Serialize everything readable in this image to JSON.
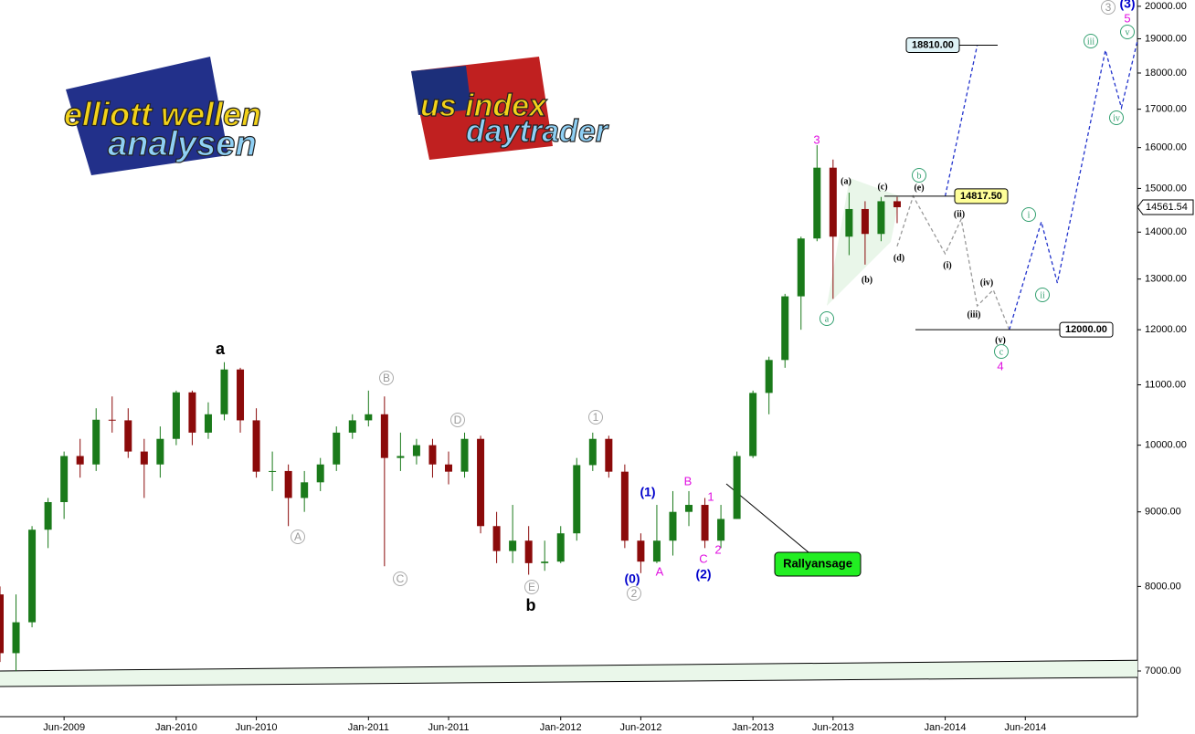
{
  "chart_data": {
    "type": "candlestick",
    "logos": {
      "left_top": "elliott wellen",
      "left_bottom": "analysen",
      "right_top": "us index",
      "right_bottom": "daytrader"
    },
    "log_scale": true,
    "xlim": [
      "2009-02",
      "2015-01"
    ],
    "ylim": [
      6513,
      20200
    ],
    "xticks": [
      {
        "value": "2009-06",
        "label": "Jun-2009"
      },
      {
        "value": "2010-01",
        "label": "Jan-2010"
      },
      {
        "value": "2010-06",
        "label": "Jun-2010"
      },
      {
        "value": "2011-01",
        "label": "Jan-2011"
      },
      {
        "value": "2011-06",
        "label": "Jun-2011"
      },
      {
        "value": "2012-01",
        "label": "Jan-2012"
      },
      {
        "value": "2012-06",
        "label": "Jun-2012"
      },
      {
        "value": "2013-01",
        "label": "Jan-2013"
      },
      {
        "value": "2013-06",
        "label": "Jun-2013"
      },
      {
        "value": "2014-01",
        "label": "Jan-2014"
      },
      {
        "value": "2014-06",
        "label": "Jun-2014"
      }
    ],
    "yticks": [
      {
        "value": 7000,
        "label": "7000.00"
      },
      {
        "value": 8000,
        "label": "8000.00"
      },
      {
        "value": 9000,
        "label": "9000.00"
      },
      {
        "value": 10000,
        "label": "10000.00"
      },
      {
        "value": 11000,
        "label": "11000.00"
      },
      {
        "value": 12000,
        "label": "12000.00"
      },
      {
        "value": 13000,
        "label": "13000.00"
      },
      {
        "value": 14000,
        "label": "14000.00"
      },
      {
        "value": 15000,
        "label": "15000.00"
      },
      {
        "value": 16000,
        "label": "16000.00"
      },
      {
        "value": 17000,
        "label": "17000.00"
      },
      {
        "value": 18000,
        "label": "18000.00"
      },
      {
        "value": 19000,
        "label": "19000.00"
      },
      {
        "value": 20000,
        "label": "20000.00"
      }
    ],
    "up_color": "#1a7a1a",
    "down_color": "#8b0a0a",
    "x": [
      "2009-02",
      "2009-03",
      "2009-04",
      "2009-05",
      "2009-06",
      "2009-07",
      "2009-08",
      "2009-09",
      "2009-10",
      "2009-11",
      "2009-12",
      "2010-01",
      "2010-02",
      "2010-03",
      "2010-04",
      "2010-05",
      "2010-06",
      "2010-07",
      "2010-08",
      "2010-09",
      "2010-10",
      "2010-11",
      "2010-12",
      "2011-01",
      "2011-02",
      "2011-03",
      "2011-04",
      "2011-05",
      "2011-06",
      "2011-07",
      "2011-08",
      "2011-09",
      "2011-10",
      "2011-11",
      "2011-12",
      "2012-01",
      "2012-02",
      "2012-03",
      "2012-04",
      "2012-05",
      "2012-06",
      "2012-07",
      "2012-08",
      "2012-09",
      "2012-10",
      "2012-11",
      "2012-12",
      "2013-01",
      "2013-02",
      "2013-03",
      "2013-04",
      "2013-05",
      "2013-06",
      "2013-07",
      "2013-08",
      "2013-09",
      "2013-10"
    ],
    "open": [
      7900,
      7200,
      7560,
      8750,
      9140,
      9830,
      9700,
      10410,
      10400,
      9900,
      9700,
      10100,
      10870,
      10200,
      10500,
      11270,
      10400,
      9590,
      9600,
      9200,
      9430,
      9700,
      10200,
      10400,
      10500,
      9800,
      9830,
      10000,
      9700,
      9590,
      10100,
      8800,
      8460,
      8600,
      8300,
      8320,
      8700,
      9690,
      10100,
      9590,
      8600,
      8320,
      8600,
      9000,
      9100,
      8600,
      8900,
      9830,
      10860,
      11440,
      12650,
      13860,
      15500,
      13900,
      14520,
      13960,
      14700
    ],
    "high": [
      8000,
      7900,
      8800,
      9200,
      9900,
      10100,
      10600,
      10800,
      10600,
      10100,
      10300,
      10900,
      10900,
      10700,
      11400,
      11300,
      10600,
      9900,
      9700,
      9600,
      9800,
      10300,
      10500,
      10900,
      10800,
      10200,
      10100,
      10100,
      9900,
      10200,
      10150,
      9000,
      9100,
      8800,
      8600,
      8800,
      9800,
      10200,
      10150,
      9700,
      8700,
      9100,
      9300,
      9300,
      9200,
      9100,
      9900,
      10900,
      11500,
      12700,
      13900,
      16060,
      15700,
      14900,
      14700,
      14800,
      14800
    ],
    "low": [
      7100,
      7000,
      7500,
      8500,
      8900,
      9500,
      9600,
      10200,
      9800,
      9200,
      9500,
      10000,
      10000,
      10100,
      10400,
      10200,
      9500,
      9300,
      8800,
      9000,
      9300,
      9600,
      10100,
      10300,
      8260,
      9600,
      9700,
      9500,
      9400,
      9500,
      8700,
      8300,
      8300,
      8150,
      8200,
      8300,
      8600,
      9600,
      9500,
      8500,
      8170,
      8300,
      8400,
      8800,
      8500,
      8500,
      8900,
      9800,
      10500,
      11300,
      12000,
      13800,
      12600,
      13500,
      13300,
      13800,
      14200
    ],
    "close": [
      7200,
      7560,
      8750,
      9140,
      9830,
      9700,
      10410,
      10400,
      9900,
      9700,
      10100,
      10870,
      10200,
      10500,
      11270,
      10400,
      9590,
      9600,
      9200,
      9430,
      9700,
      10200,
      10400,
      10500,
      9800,
      9830,
      10000,
      9700,
      9590,
      10100,
      8800,
      8460,
      8600,
      8300,
      8320,
      8700,
      9690,
      10100,
      9590,
      8600,
      8320,
      8600,
      9000,
      9100,
      8600,
      8900,
      9830,
      10860,
      11440,
      12650,
      13860,
      15500,
      13900,
      14520,
      13960,
      14700,
      14561.54
    ],
    "last_price": 14561.54,
    "channel": {
      "x": [
        "2009-02",
        "2015-01"
      ],
      "upper": [
        7000,
        7120
      ],
      "lower": [
        6830,
        6930
      ],
      "color": "#eaf7ea"
    },
    "projections": [
      {
        "color": "#999999",
        "x": [
          "2013-10",
          "2013-11",
          "2014-01",
          "2014-02",
          "2014-03",
          "2014-04",
          "2014-05"
        ],
        "values": [
          13690,
          14817.5,
          13530,
          14290,
          12460,
          12780,
          12000
        ]
      },
      {
        "color": "#2233cc",
        "x": [
          "2014-05",
          "2014-07",
          "2014-08",
          "2014-11",
          "2014-12",
          "2015-01"
        ],
        "values": [
          12000,
          14230,
          12920,
          18660,
          17040,
          18940
        ]
      },
      {
        "color": "#2233cc",
        "x": [
          "2014-01",
          "2014-03"
        ],
        "values": [
          14817.5,
          18810
        ]
      }
    ],
    "levels": [
      {
        "value": 18810,
        "label": "18810.00",
        "color": "#dff3f7"
      },
      {
        "value": 14817.5,
        "label": "14817.50",
        "color": "#ffff99"
      },
      {
        "value": 12000,
        "label": "12000.00",
        "color": "#ffffff"
      }
    ],
    "callout": "Rallyansage",
    "annotations": [
      {
        "text": "a",
        "style": "major"
      },
      {
        "text": "b",
        "style": "major"
      },
      {
        "text": "A",
        "style": "circled-grey"
      },
      {
        "text": "B",
        "style": "circled-grey"
      },
      {
        "text": "C",
        "style": "circled-grey"
      },
      {
        "text": "D",
        "style": "circled-grey"
      },
      {
        "text": "E",
        "style": "circled-grey"
      },
      {
        "text": "1",
        "style": "circled-grey"
      },
      {
        "text": "2",
        "style": "circled-grey"
      },
      {
        "text": "3",
        "style": "circled-grey"
      },
      {
        "text": "(1)",
        "style": "blue"
      },
      {
        "text": "(0)",
        "style": "blue"
      },
      {
        "text": "(2)",
        "style": "blue"
      },
      {
        "text": "(3)",
        "style": "blue"
      },
      {
        "text": "B",
        "style": "magenta"
      },
      {
        "text": "A",
        "style": "magenta"
      },
      {
        "text": "C",
        "style": "magenta"
      },
      {
        "text": "1",
        "style": "magenta"
      },
      {
        "text": "2",
        "style": "magenta"
      },
      {
        "text": "3",
        "style": "magenta"
      },
      {
        "text": "4",
        "style": "magenta"
      },
      {
        "text": "5",
        "style": "magenta"
      },
      {
        "text": "a",
        "style": "circled-green"
      },
      {
        "text": "b",
        "style": "circled-green"
      },
      {
        "text": "c",
        "style": "circled-green"
      },
      {
        "text": "i",
        "style": "circled-green"
      },
      {
        "text": "ii",
        "style": "circled-green"
      },
      {
        "text": "iii",
        "style": "circled-green"
      },
      {
        "text": "iv",
        "style": "circled-green"
      },
      {
        "text": "v",
        "style": "circled-green"
      },
      {
        "text": "(a)",
        "style": "minor"
      },
      {
        "text": "(b)",
        "style": "minor"
      },
      {
        "text": "(c)",
        "style": "minor"
      },
      {
        "text": "(d)",
        "style": "minor"
      },
      {
        "text": "(e)",
        "style": "minor"
      },
      {
        "text": "(i)",
        "style": "minor"
      },
      {
        "text": "(ii)",
        "style": "minor"
      },
      {
        "text": "(iii)",
        "style": "minor"
      },
      {
        "text": "(iv)",
        "style": "minor"
      },
      {
        "text": "(v)",
        "style": "minor"
      }
    ]
  }
}
